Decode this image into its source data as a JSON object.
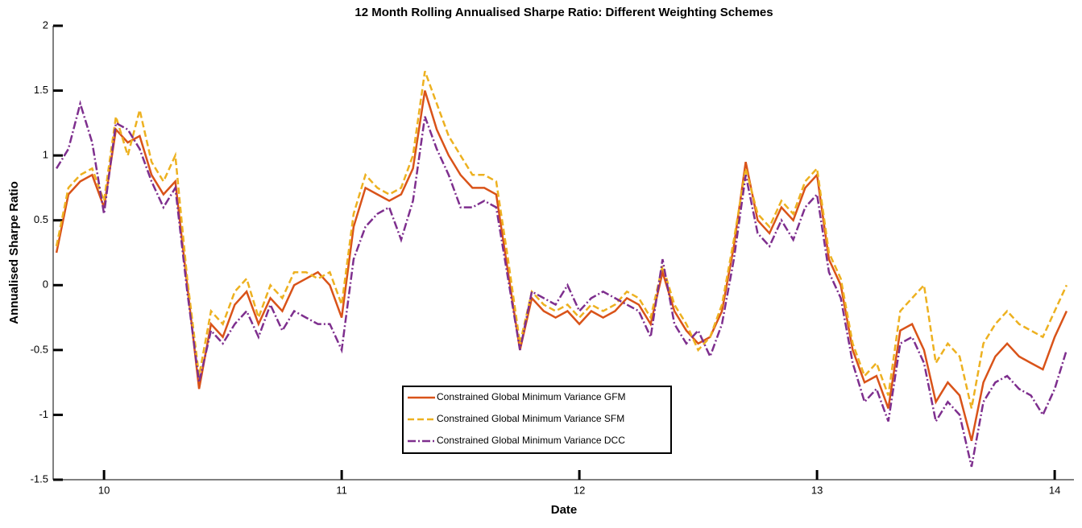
{
  "chart_data": {
    "type": "line",
    "title": "12 Month Rolling Annualised Sharpe Ratio: Different Weighting Schemes",
    "xlabel": "Date",
    "ylabel": "Annualised Sharpe Ratio",
    "x": [
      9.8,
      9.85,
      9.9,
      9.95,
      10,
      10.05,
      10.1,
      10.15,
      10.2,
      10.25,
      10.3,
      10.35,
      10.4,
      10.45,
      10.5,
      10.55,
      10.6,
      10.65,
      10.7,
      10.75,
      10.8,
      10.85,
      10.9,
      10.95,
      11,
      11.05,
      11.1,
      11.15,
      11.2,
      11.25,
      11.3,
      11.35,
      11.4,
      11.45,
      11.5,
      11.55,
      11.6,
      11.65,
      11.7,
      11.75,
      11.8,
      11.85,
      11.9,
      11.95,
      12,
      12.05,
      12.1,
      12.15,
      12.2,
      12.25,
      12.3,
      12.35,
      12.4,
      12.45,
      12.5,
      12.55,
      12.6,
      12.65,
      12.7,
      12.75,
      12.8,
      12.85,
      12.9,
      12.95,
      13,
      13.05,
      13.1,
      13.15,
      13.2,
      13.25,
      13.3,
      13.35,
      13.4,
      13.45,
      13.5,
      13.55,
      13.6,
      13.65,
      13.7,
      13.75,
      13.8,
      13.85,
      13.9,
      13.95,
      14,
      14.05
    ],
    "series": [
      {
        "name": "Constrained Global Minimum Variance GFM",
        "color": "#d95319",
        "dash": "",
        "values": [
          0.25,
          0.7,
          0.8,
          0.85,
          0.6,
          1.2,
          1.1,
          1.15,
          0.85,
          0.7,
          0.8,
          0.0,
          -0.8,
          -0.3,
          -0.4,
          -0.15,
          -0.05,
          -0.3,
          -0.1,
          -0.2,
          0.0,
          0.05,
          0.1,
          0.0,
          -0.25,
          0.45,
          0.75,
          0.7,
          0.65,
          0.7,
          0.9,
          1.5,
          1.2,
          1.0,
          0.85,
          0.75,
          0.75,
          0.7,
          0.1,
          -0.5,
          -0.1,
          -0.2,
          -0.25,
          -0.2,
          -0.3,
          -0.2,
          -0.25,
          -0.2,
          -0.1,
          -0.15,
          -0.3,
          0.1,
          -0.2,
          -0.35,
          -0.45,
          -0.4,
          -0.2,
          0.3,
          0.95,
          0.5,
          0.4,
          0.6,
          0.5,
          0.75,
          0.85,
          0.2,
          0.0,
          -0.5,
          -0.75,
          -0.7,
          -0.95,
          -0.35,
          -0.3,
          -0.5,
          -0.9,
          -0.75,
          -0.85,
          -1.2,
          -0.75,
          -0.55,
          -0.45,
          -0.55,
          -0.6,
          -0.65,
          -0.4,
          -0.2
        ]
      },
      {
        "name": "Constrained Global Minimum Variance SFM",
        "color": "#edb120",
        "dash": "8,4",
        "values": [
          0.3,
          0.75,
          0.85,
          0.9,
          0.65,
          1.3,
          1.0,
          1.35,
          0.95,
          0.8,
          1.0,
          0.05,
          -0.7,
          -0.2,
          -0.3,
          -0.05,
          0.05,
          -0.25,
          0.0,
          -0.1,
          0.1,
          0.1,
          0.05,
          0.1,
          -0.15,
          0.55,
          0.85,
          0.75,
          0.7,
          0.75,
          1.0,
          1.65,
          1.4,
          1.15,
          1.0,
          0.85,
          0.85,
          0.8,
          0.2,
          -0.45,
          -0.05,
          -0.15,
          -0.2,
          -0.15,
          -0.25,
          -0.15,
          -0.2,
          -0.15,
          -0.05,
          -0.1,
          -0.25,
          0.15,
          -0.15,
          -0.3,
          -0.5,
          -0.4,
          -0.15,
          0.35,
          0.9,
          0.55,
          0.45,
          0.65,
          0.55,
          0.8,
          0.9,
          0.25,
          0.05,
          -0.45,
          -0.7,
          -0.6,
          -0.85,
          -0.2,
          -0.1,
          0.0,
          -0.6,
          -0.45,
          -0.55,
          -0.95,
          -0.45,
          -0.3,
          -0.2,
          -0.3,
          -0.35,
          -0.4,
          -0.2,
          0.0
        ]
      },
      {
        "name": "Constrained Global Minimum Variance DCC",
        "color": "#7e2f8e",
        "dash": "10,3,2,3",
        "values": [
          0.9,
          1.05,
          1.4,
          1.1,
          0.55,
          1.25,
          1.2,
          1.05,
          0.8,
          0.6,
          0.75,
          -0.05,
          -0.75,
          -0.35,
          -0.45,
          -0.3,
          -0.2,
          -0.4,
          -0.15,
          -0.35,
          -0.2,
          -0.25,
          -0.3,
          -0.3,
          -0.5,
          0.2,
          0.45,
          0.55,
          0.6,
          0.35,
          0.65,
          1.3,
          1.05,
          0.85,
          0.6,
          0.6,
          0.65,
          0.6,
          0.05,
          -0.5,
          -0.05,
          -0.1,
          -0.15,
          0.0,
          -0.2,
          -0.1,
          -0.05,
          -0.1,
          -0.15,
          -0.2,
          -0.4,
          0.2,
          -0.3,
          -0.45,
          -0.35,
          -0.55,
          -0.3,
          0.2,
          0.85,
          0.4,
          0.3,
          0.5,
          0.35,
          0.6,
          0.7,
          0.1,
          -0.1,
          -0.6,
          -0.9,
          -0.8,
          -1.05,
          -0.45,
          -0.4,
          -0.6,
          -1.05,
          -0.9,
          -1.0,
          -1.4,
          -0.9,
          -0.75,
          -0.7,
          -0.8,
          -0.85,
          -1.0,
          -0.8,
          -0.5
        ]
      }
    ],
    "xlim": [
      9.786,
      14.081
    ],
    "ylim": [
      -1.5,
      2
    ],
    "xticks": [
      10,
      11,
      12,
      13,
      14
    ],
    "yticks": [
      -1.5,
      -1,
      -0.5,
      0,
      0.5,
      1,
      1.5,
      2
    ]
  }
}
